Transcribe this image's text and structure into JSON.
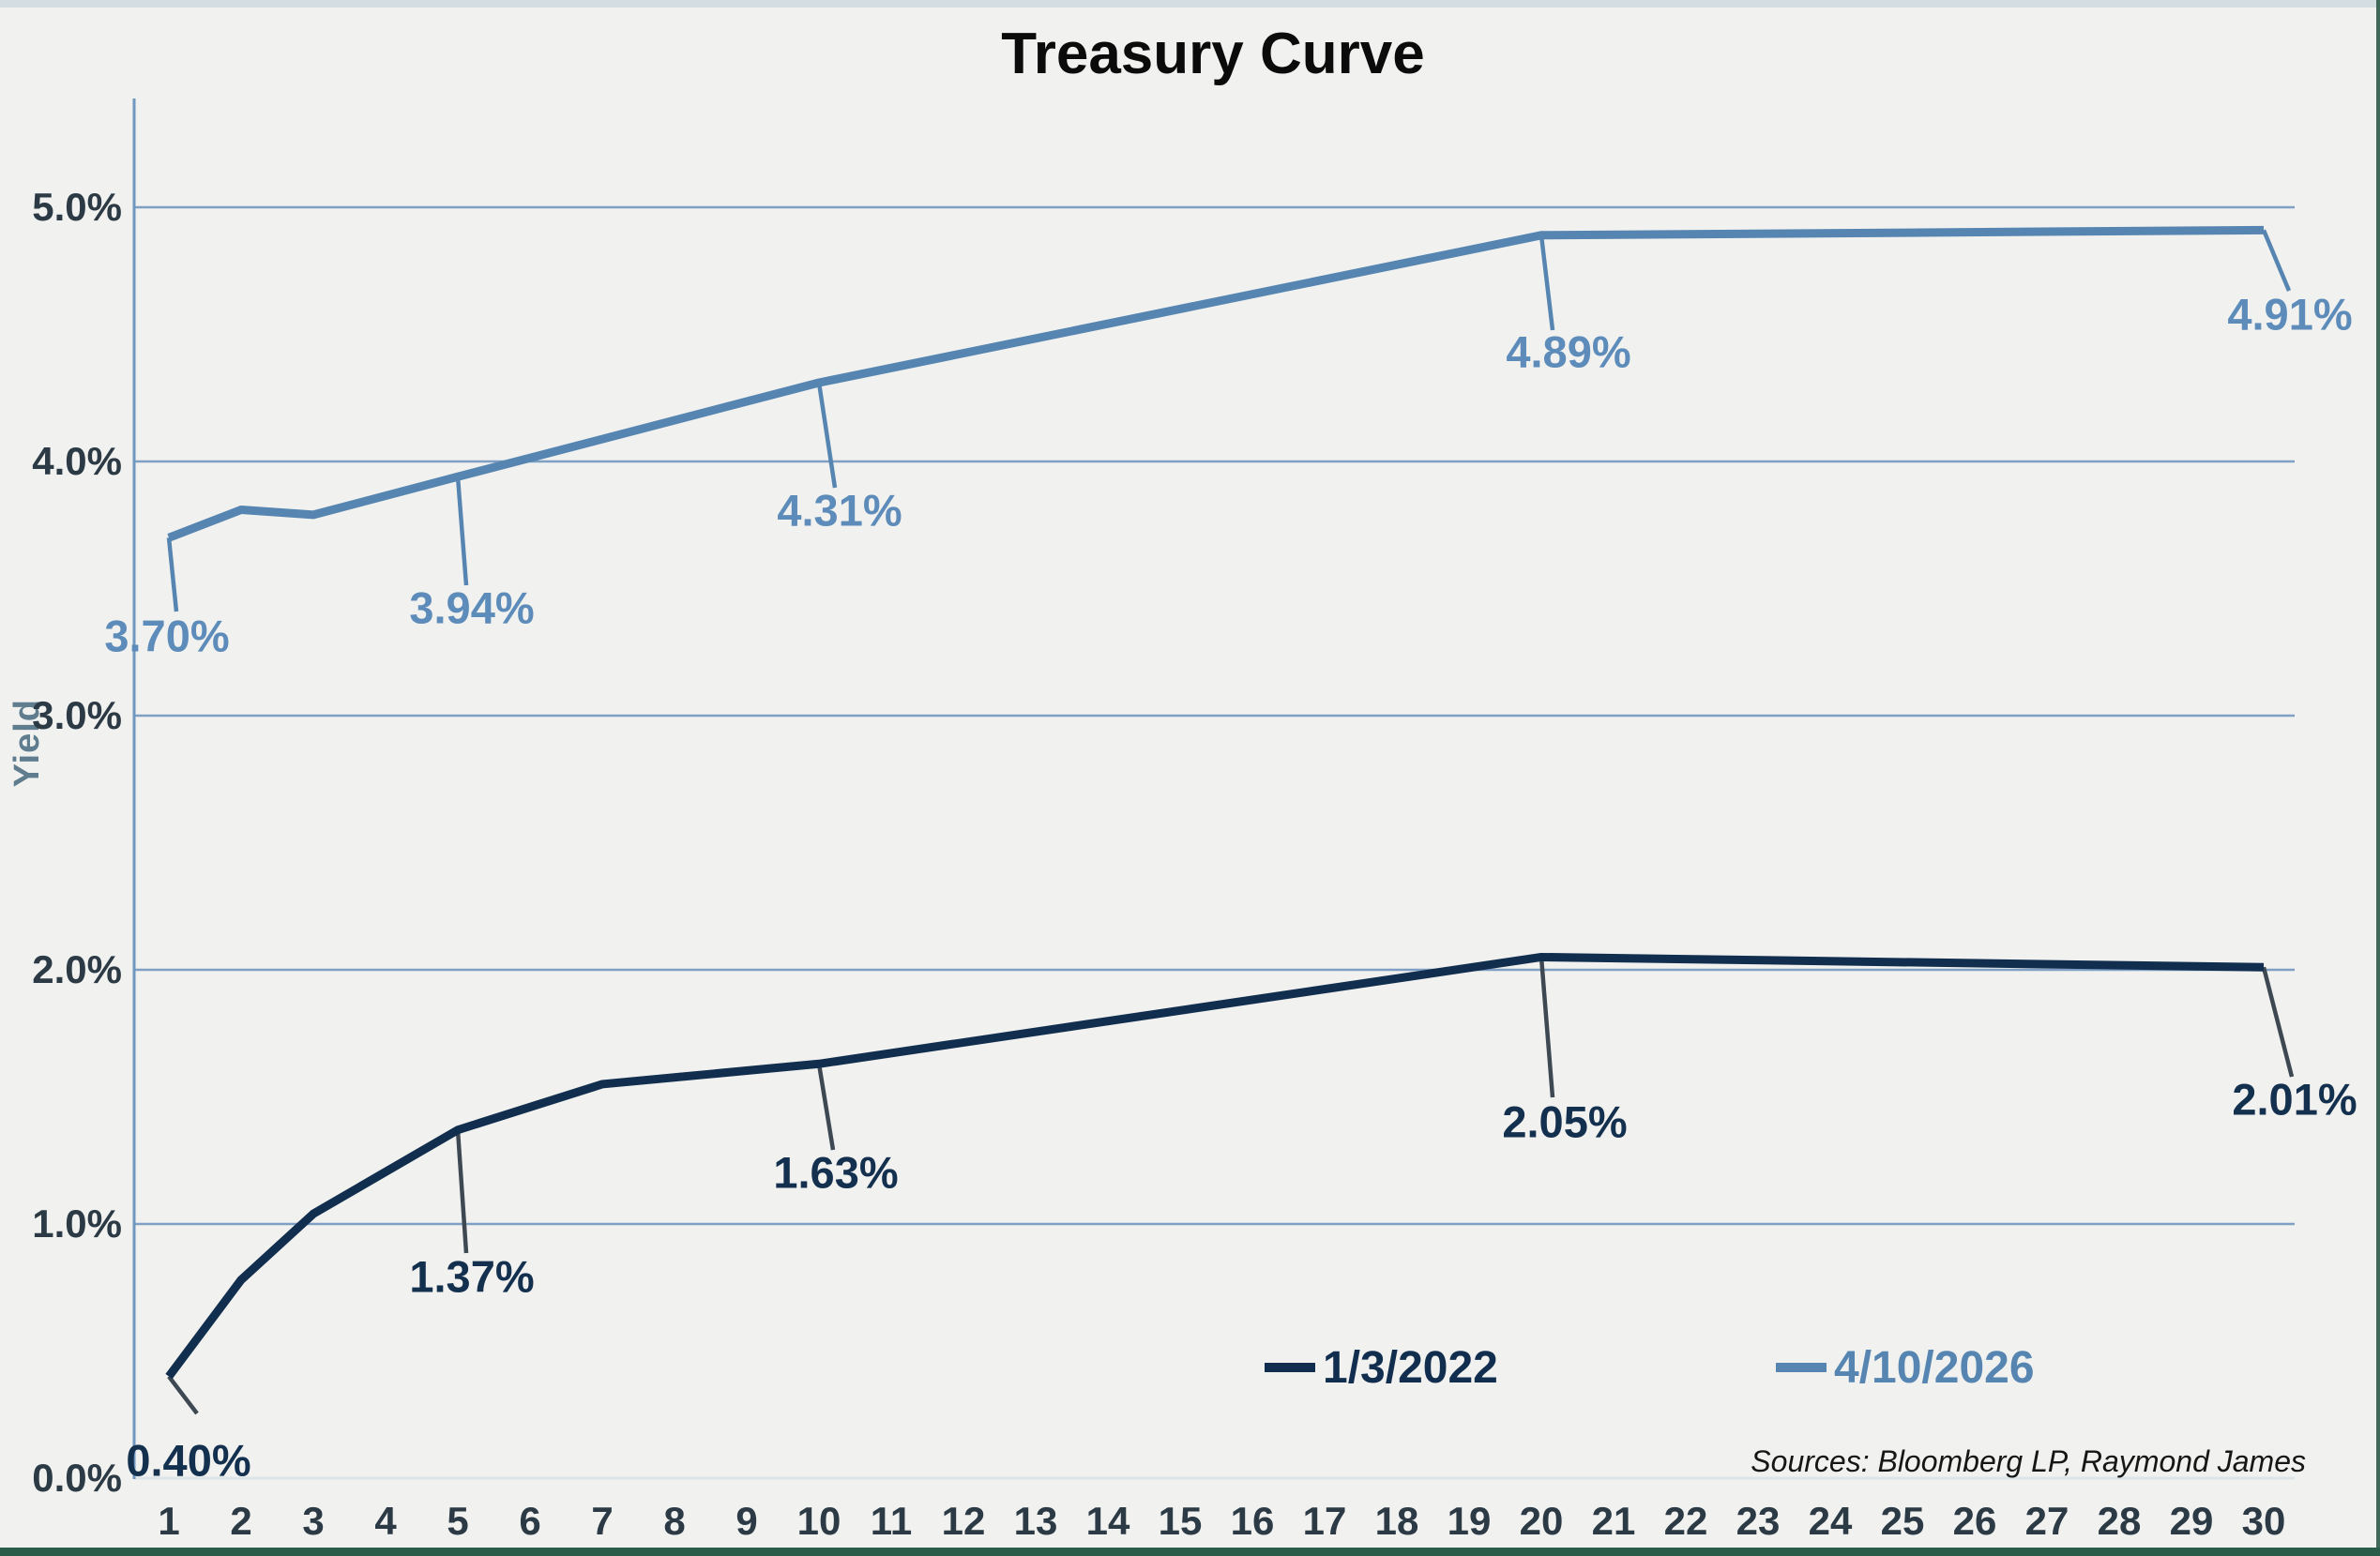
{
  "title": "Treasury Curve",
  "y_axis_title": "Yield",
  "source_note": "Sources: Bloomberg LP, Raymond James",
  "colors": {
    "background": "#f1f1ef",
    "top_border": "#d4dde2",
    "bottom_border": "#2b5c49",
    "gridline": "#7fa0c4",
    "y_axis_line": "#6f97c0",
    "x_axis_line": "#dde5e8",
    "tick_text": "#2b3a45",
    "series_2022": "#112e4e",
    "series_2026": "#5585b0"
  },
  "legend": {
    "items": [
      {
        "label": "1/3/2022",
        "color": "#112e4e"
      },
      {
        "label": "4/10/2026",
        "color": "#5585b0"
      }
    ]
  },
  "chart_data": {
    "type": "line",
    "title": "Treasury Curve",
    "xlabel": "",
    "ylabel": "Yield",
    "x_ticks": [
      1,
      2,
      3,
      4,
      5,
      6,
      7,
      8,
      9,
      10,
      11,
      12,
      13,
      14,
      15,
      16,
      17,
      18,
      19,
      20,
      21,
      22,
      23,
      24,
      25,
      26,
      27,
      28,
      29,
      30
    ],
    "y_ticks": [
      {
        "value": 0,
        "label": "0.0%"
      },
      {
        "value": 1,
        "label": "1.0%"
      },
      {
        "value": 2,
        "label": "2.0%"
      },
      {
        "value": 3,
        "label": "3.0%"
      },
      {
        "value": 4,
        "label": "4.0%"
      },
      {
        "value": 5,
        "label": "5.0%"
      }
    ],
    "ylim": [
      0,
      5.43
    ],
    "xlim": [
      1,
      30
    ],
    "grid": "horizontal",
    "legend_position": "inside-bottom-right",
    "series": [
      {
        "name": "1/3/2022",
        "color": "#112e4e",
        "label_color": "#14304f",
        "leader_color": "#3d4852",
        "x": [
          1,
          2,
          3,
          5,
          7,
          10,
          20,
          30
        ],
        "values": [
          0.4,
          0.78,
          1.04,
          1.37,
          1.55,
          1.63,
          2.05,
          2.01
        ],
        "point_labels": [
          {
            "x": 1,
            "text": "0.40%"
          },
          {
            "x": 5,
            "text": "1.37%"
          },
          {
            "x": 10,
            "text": "1.63%"
          },
          {
            "x": 20,
            "text": "2.05%"
          },
          {
            "x": 30,
            "text": "2.01%"
          }
        ]
      },
      {
        "name": "4/10/2026",
        "color": "#5585b0",
        "label_color": "#5d8cba",
        "leader_color": "#5585b0",
        "x": [
          1,
          2,
          3,
          5,
          10,
          20,
          30
        ],
        "values": [
          3.7,
          3.81,
          3.79,
          3.94,
          4.31,
          4.89,
          4.91
        ],
        "point_labels": [
          {
            "x": 1,
            "text": "3.70%"
          },
          {
            "x": 5,
            "text": "3.94%"
          },
          {
            "x": 10,
            "text": "4.31%"
          },
          {
            "x": 20,
            "text": "4.89%"
          },
          {
            "x": 30,
            "text": "4.91%"
          }
        ]
      }
    ]
  }
}
